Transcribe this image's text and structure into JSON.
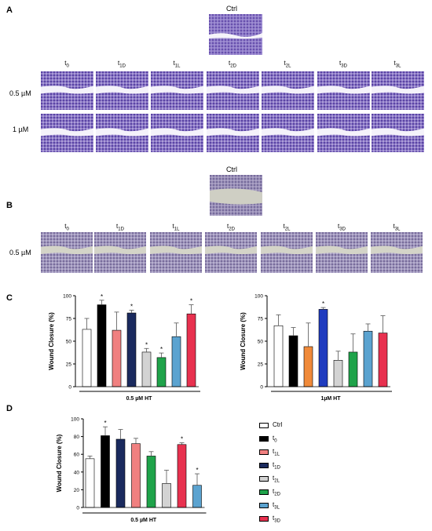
{
  "panels": {
    "A": "A",
    "B": "B",
    "C": "C",
    "D": "D"
  },
  "panel_a": {
    "ctrl_title": "Ctrl",
    "time_labels": [
      {
        "base": "t",
        "sub": "0"
      },
      {
        "base": "t",
        "sub": "1D"
      },
      {
        "base": "t",
        "sub": "1L"
      },
      {
        "base": "t",
        "sub": "2D"
      },
      {
        "base": "t",
        "sub": "2L"
      },
      {
        "base": "t",
        "sub": "3D"
      },
      {
        "base": "t",
        "sub": "3L"
      }
    ],
    "row_labels": [
      "0.5 µM",
      "1 µM"
    ]
  },
  "panel_b": {
    "ctrl_title": "Ctrl",
    "time_labels": [
      {
        "base": "t",
        "sub": "0"
      },
      {
        "base": "t",
        "sub": "1D"
      },
      {
        "base": "t",
        "sub": "1L"
      },
      {
        "base": "t",
        "sub": "2D"
      },
      {
        "base": "t",
        "sub": "2L"
      },
      {
        "base": "t",
        "sub": "3D"
      },
      {
        "base": "t",
        "sub": "3L"
      }
    ],
    "row_labels": [
      "0.5 µM"
    ]
  },
  "legend": [
    {
      "base": "Ctrl",
      "sub": "",
      "color": "#ffffff"
    },
    {
      "base": "t",
      "sub": "0",
      "color": "#000000"
    },
    {
      "base": "t",
      "sub": "1L",
      "color": "#f08080"
    },
    {
      "base": "t",
      "sub": "1D",
      "color": "#1a2a5e"
    },
    {
      "base": "t",
      "sub": "2L",
      "color": "#d3d3d3"
    },
    {
      "base": "t",
      "sub": "2D",
      "color": "#1fa34a"
    },
    {
      "base": "t",
      "sub": "3L",
      "color": "#5ba3d0"
    },
    {
      "base": "t",
      "sub": "3D",
      "color": "#e8314f"
    }
  ],
  "chart_data": [
    {
      "type": "bar",
      "panel": "C",
      "ylabel": "Wound Closure (%)",
      "xlabel": "0.5 µM HT",
      "ylim": [
        0,
        100
      ],
      "yticks": [
        "0",
        "25",
        "50",
        "75",
        "100"
      ],
      "categories": [
        "Ctrl",
        "t0",
        "t1L",
        "t1D",
        "t2L",
        "t2D",
        "t3L",
        "t3D"
      ],
      "values": [
        63,
        90,
        62,
        81,
        38,
        32,
        55,
        80
      ],
      "errors": [
        12,
        5,
        20,
        3,
        4,
        5,
        15,
        10
      ],
      "colors": [
        "#ffffff",
        "#000000",
        "#f08080",
        "#1a2a5e",
        "#d3d3d3",
        "#1fa34a",
        "#5ba3d0",
        "#e8314f"
      ],
      "significant": [
        false,
        true,
        false,
        true,
        true,
        true,
        false,
        true
      ]
    },
    {
      "type": "bar",
      "panel": "C",
      "ylabel": "Wound Closure (%)",
      "xlabel": "1µM HT",
      "ylim": [
        0,
        100
      ],
      "yticks": [
        "0",
        "25",
        "50",
        "75",
        "100"
      ],
      "categories": [
        "Ctrl",
        "t0",
        "t1L",
        "t1D",
        "t2L",
        "t2D",
        "t3L",
        "t3D"
      ],
      "values": [
        67,
        56,
        44,
        85,
        29,
        38,
        61,
        59
      ],
      "errors": [
        12,
        9,
        26,
        2,
        10,
        20,
        8,
        19
      ],
      "colors": [
        "#ffffff",
        "#000000",
        "#f08a3a",
        "#1f3bbf",
        "#d3d3d3",
        "#1fa34a",
        "#5ba3d0",
        "#e8314f"
      ],
      "significant": [
        false,
        false,
        false,
        true,
        false,
        false,
        false,
        false
      ]
    },
    {
      "type": "bar",
      "panel": "D",
      "ylabel": "Wound Closure (%)",
      "xlabel": "0.5 µM HT",
      "ylim": [
        0,
        100
      ],
      "yticks": [
        "0",
        "20",
        "40",
        "60",
        "80",
        "100"
      ],
      "categories": [
        "Ctrl",
        "t0",
        "t1D",
        "t1L",
        "t2D",
        "t2L",
        "t3D",
        "t3L"
      ],
      "values": [
        55,
        81,
        77,
        72,
        58,
        27,
        71,
        25
      ],
      "errors": [
        3,
        10,
        11,
        6,
        5,
        15,
        2,
        13
      ],
      "colors": [
        "#ffffff",
        "#000000",
        "#1a2a5e",
        "#f08080",
        "#1fa34a",
        "#d3d3d3",
        "#e8314f",
        "#5ba3d0"
      ],
      "significant": [
        false,
        true,
        false,
        false,
        false,
        false,
        true,
        true
      ]
    }
  ]
}
